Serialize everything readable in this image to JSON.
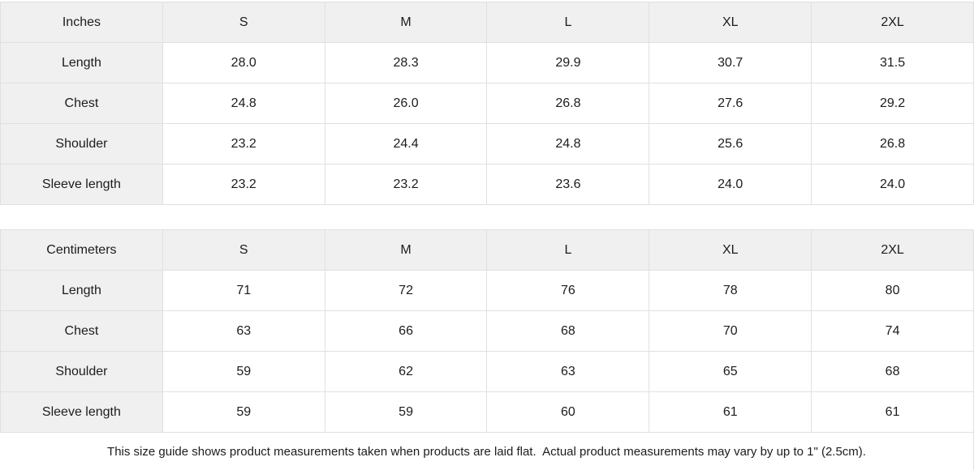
{
  "page": {
    "header_bg": "#f0f0f0",
    "border_color": "#e0e0e0",
    "text_color": "#1c1c1c"
  },
  "chart_data": [
    {
      "type": "table",
      "unit": "Inches",
      "sizes": [
        "S",
        "M",
        "L",
        "XL",
        "2XL"
      ],
      "rows": [
        {
          "label": "Length",
          "values": [
            "28.0",
            "28.3",
            "29.9",
            "30.7",
            "31.5"
          ]
        },
        {
          "label": "Chest",
          "values": [
            "24.8",
            "26.0",
            "26.8",
            "27.6",
            "29.2"
          ]
        },
        {
          "label": "Shoulder",
          "values": [
            "23.2",
            "24.4",
            "24.8",
            "25.6",
            "26.8"
          ]
        },
        {
          "label": "Sleeve length",
          "values": [
            "23.2",
            "23.2",
            "23.6",
            "24.0",
            "24.0"
          ]
        }
      ]
    },
    {
      "type": "table",
      "unit": "Centimeters",
      "sizes": [
        "S",
        "M",
        "L",
        "XL",
        "2XL"
      ],
      "rows": [
        {
          "label": "Length",
          "values": [
            "71",
            "72",
            "76",
            "78",
            "80"
          ]
        },
        {
          "label": "Chest",
          "values": [
            "63",
            "66",
            "68",
            "70",
            "74"
          ]
        },
        {
          "label": "Shoulder",
          "values": [
            "59",
            "62",
            "63",
            "65",
            "68"
          ]
        },
        {
          "label": "Sleeve length",
          "values": [
            "59",
            "59",
            "60",
            "61",
            "61"
          ]
        }
      ]
    }
  ],
  "footnote": "This size guide shows product measurements taken when products are laid flat.  Actual product measurements may vary by up to 1\" (2.5cm)."
}
